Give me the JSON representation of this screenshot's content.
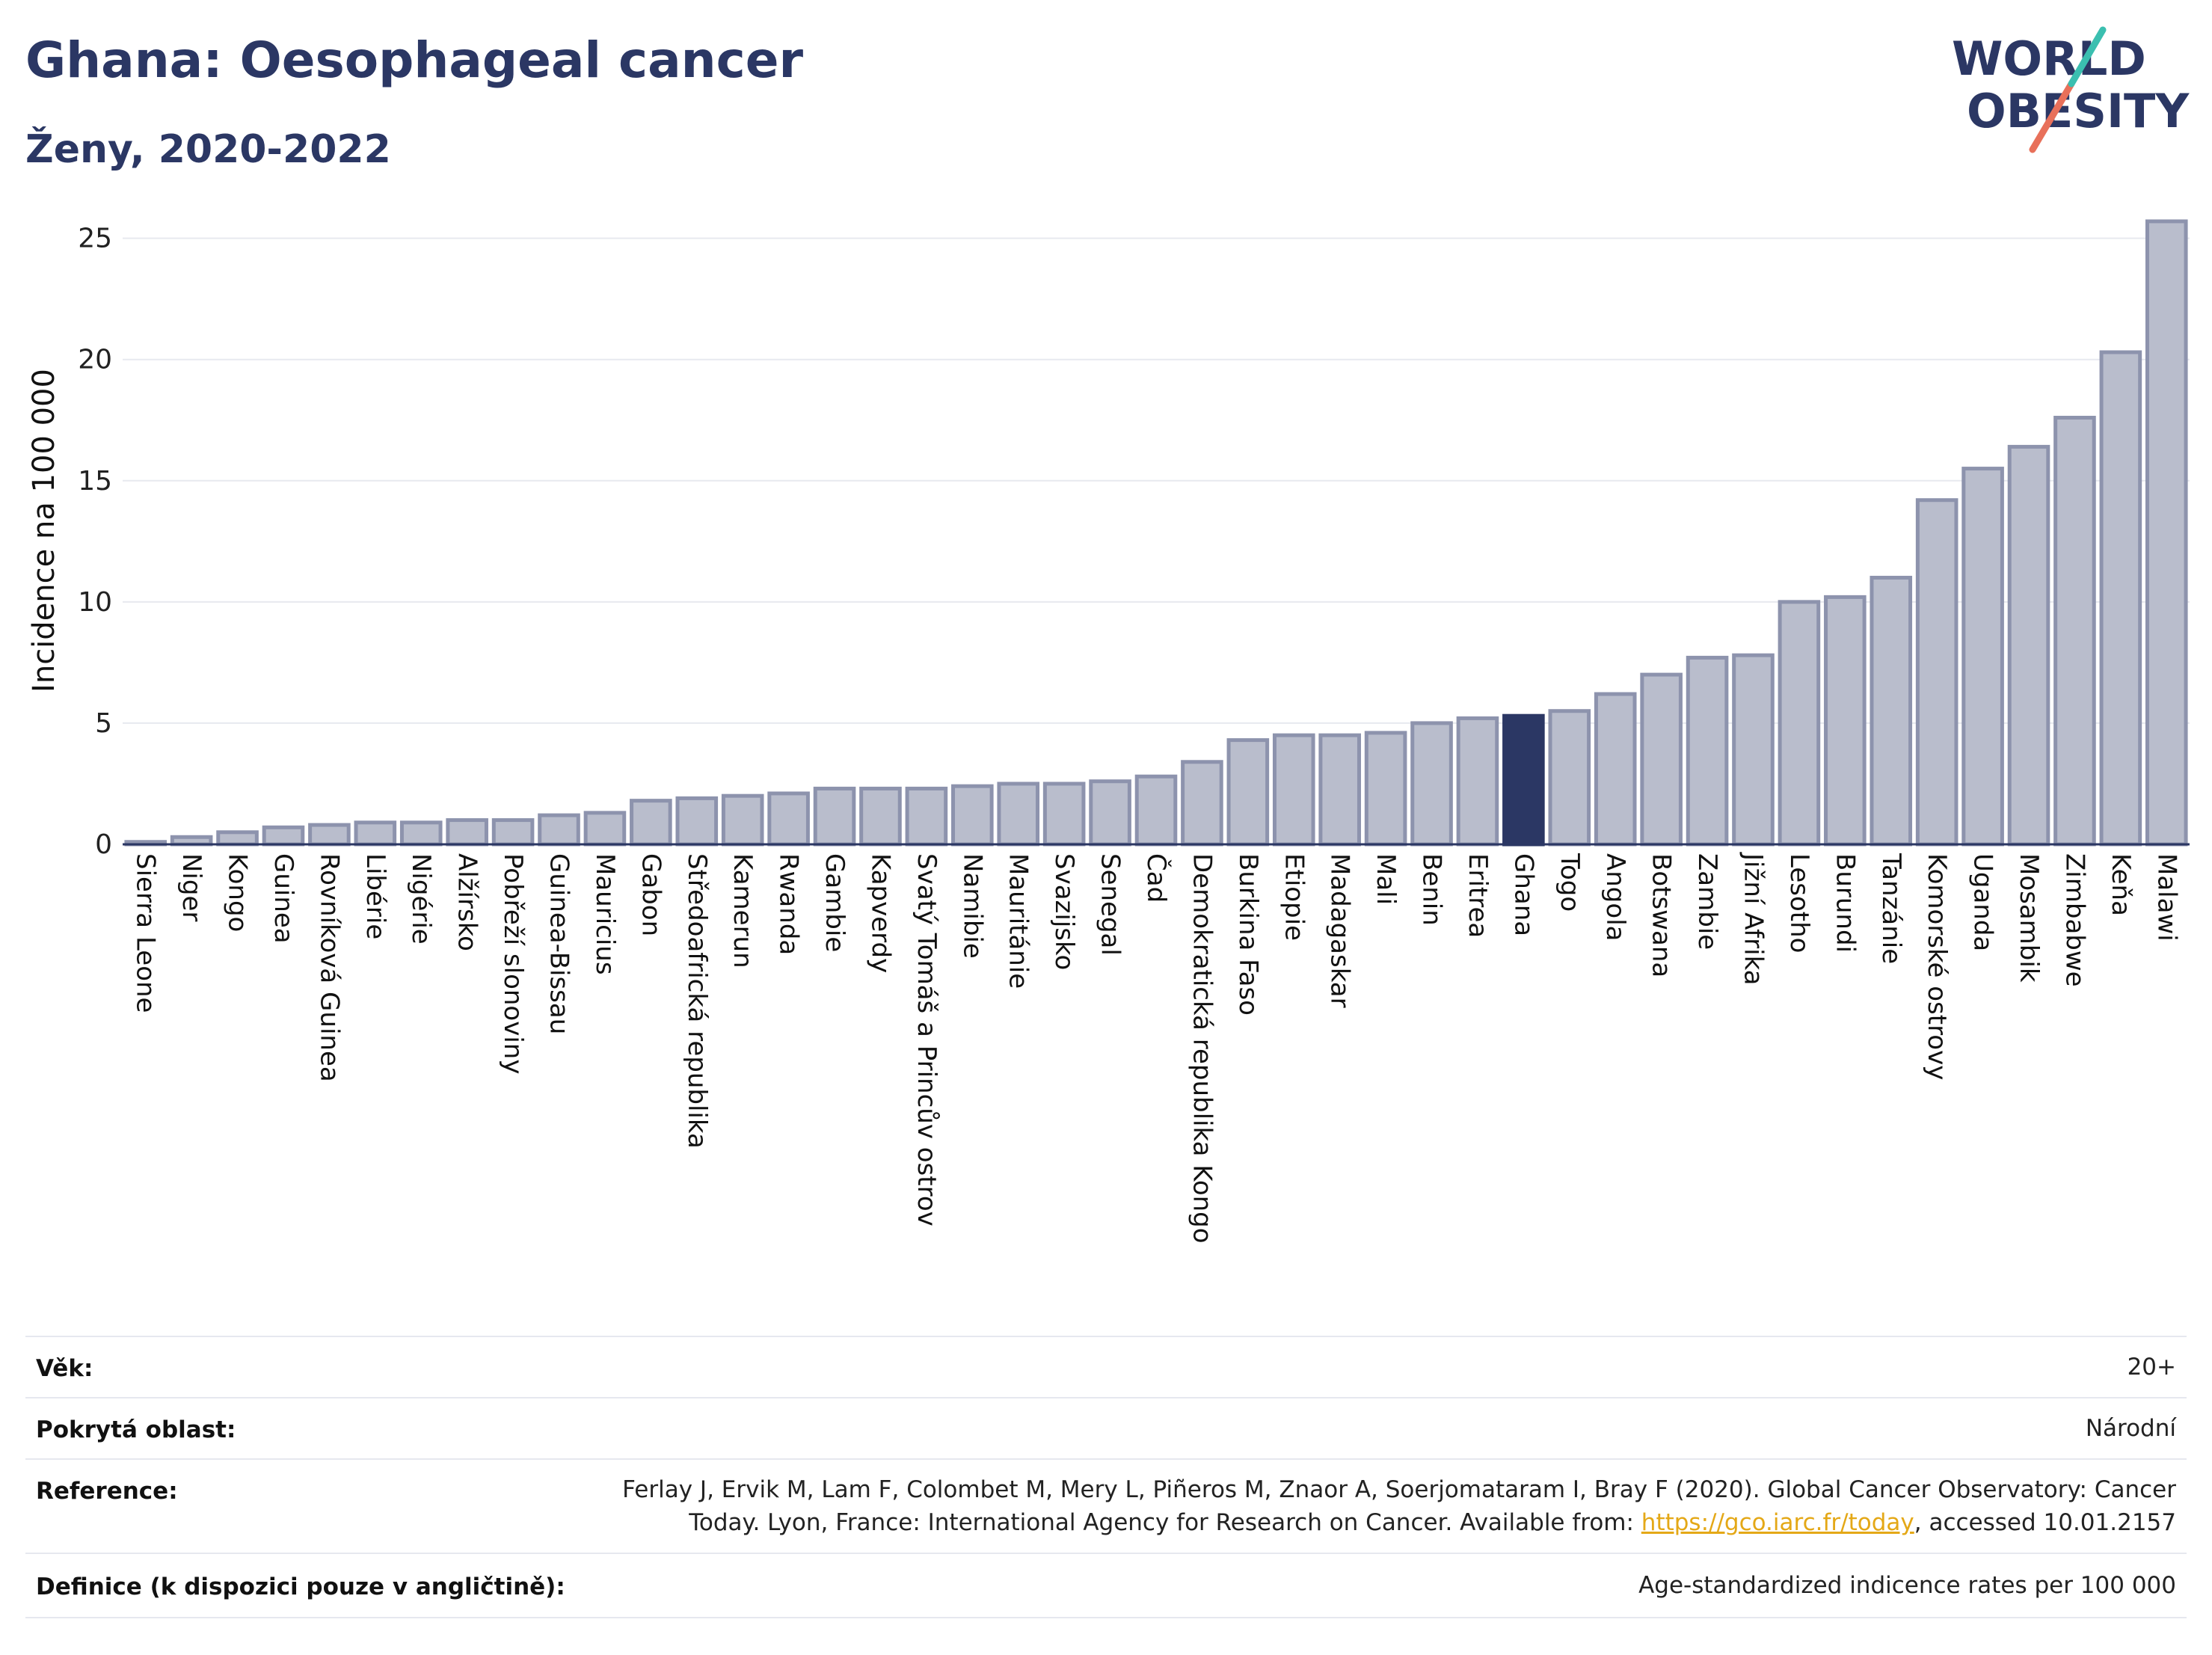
{
  "title": "Ghana: Oesophageal cancer",
  "subtitle": "Ženy, 2020-2022",
  "logo": {
    "line1": "WORLD",
    "line2": "OBESITY"
  },
  "chart_data": {
    "type": "bar",
    "ylabel": "Incidence na 100 000",
    "ylim": [
      0,
      26.5
    ],
    "yticks": [
      0,
      5,
      10,
      15,
      20,
      25
    ],
    "grid": true,
    "highlight": "Ghana",
    "colors": {
      "bar": "#b9bdcc",
      "bar_edge": "#8d93ad",
      "highlight": "#2b3764"
    },
    "categories": [
      "Sierra Leone",
      "Niger",
      "Kongo",
      "Guinea",
      "Rovníková Guinea",
      "Libérie",
      "Nigérie",
      "Alžírsko",
      "Pobřeží slonoviny",
      "Guinea-Bissau",
      "Mauricius",
      "Gabon",
      "Středoafrická republika",
      "Kamerun",
      "Rwanda",
      "Gambie",
      "Kapverdy",
      "Svatý Tomáš a Princův ostrov",
      "Namibie",
      "Mauritánie",
      "Svazijsko",
      "Senegal",
      "Čad",
      "Demokratická republika Kongo",
      "Burkina Faso",
      "Etiopie",
      "Madagaskar",
      "Mali",
      "Benin",
      "Eritrea",
      "Ghana",
      "Togo",
      "Angola",
      "Botswana",
      "Zambie",
      "Jižní Afrika",
      "Lesotho",
      "Burundi",
      "Tanzánie",
      "Komorské ostrovy",
      "Uganda",
      "Mosambik",
      "Zimbabwe",
      "Keňa",
      "Malawi"
    ],
    "values": [
      0.1,
      0.3,
      0.5,
      0.7,
      0.8,
      0.9,
      0.9,
      1.0,
      1.0,
      1.2,
      1.3,
      1.8,
      1.9,
      2.0,
      2.1,
      2.3,
      2.3,
      2.3,
      2.4,
      2.5,
      2.5,
      2.6,
      2.8,
      3.4,
      4.3,
      4.5,
      4.5,
      4.6,
      5.0,
      5.2,
      5.3,
      5.5,
      6.2,
      7.0,
      7.7,
      7.8,
      10.0,
      10.2,
      11.0,
      14.2,
      15.5,
      16.4,
      17.6,
      20.3,
      25.7
    ]
  },
  "meta": {
    "age_label": "Věk:",
    "age_value": "20+",
    "area_label": "Pokrytá oblast:",
    "area_value": "Národní",
    "ref_label": "Reference:",
    "ref_line1": "Ferlay J, Ervik M, Lam F, Colombet M, Mery L, Piñeros M, Znaor A, Soerjomataram I, Bray F (2020). Global Cancer Observatory: Cancer",
    "ref_line2_pre": "Today. Lyon, France: International Agency for Research on Cancer. Available from: ",
    "ref_link": "https://gco.iarc.fr/today",
    "ref_line2_post": ", accessed 10.01.2157",
    "def_label": "Definice (k dispozici pouze v angličtině):",
    "def_value": "Age-standardized indicence rates per 100 000"
  }
}
